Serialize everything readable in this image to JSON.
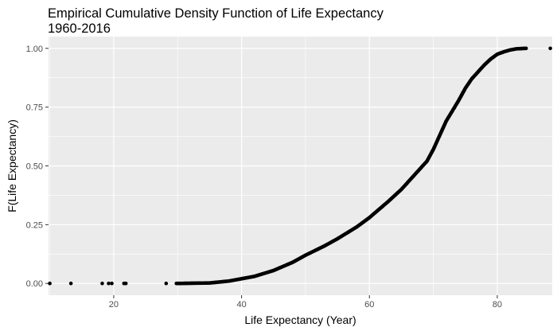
{
  "chart_data": {
    "type": "scatter",
    "title_lines": [
      "Empirical Cumulative Density Function of Life Expectancy",
      "1960-2016"
    ],
    "xlabel": "Life Expectancy (Year)",
    "ylabel": "F(Life Expectancy)",
    "xlim": [
      9.8,
      88.6
    ],
    "ylim": [
      -0.05,
      1.05
    ],
    "x_ticks": [
      20,
      40,
      60,
      80
    ],
    "x_minor_ticks": [
      10,
      30,
      50,
      70
    ],
    "y_ticks": [
      0,
      0.25,
      0.5,
      0.75,
      1.0
    ],
    "y_tick_labels": [
      "0.00",
      "0.25",
      "0.50",
      "0.75",
      "1.00"
    ],
    "colors": {
      "panel": "#ebebeb",
      "grid": "#ffffff",
      "point": "#000000"
    },
    "isolated_points": [
      {
        "x": 10.0,
        "y": 0.0
      },
      {
        "x": 13.3,
        "y": 0.0
      },
      {
        "x": 18.2,
        "y": 0.0
      },
      {
        "x": 19.2,
        "y": 0.0
      },
      {
        "x": 19.7,
        "y": 0.0
      },
      {
        "x": 21.6,
        "y": 0.0
      },
      {
        "x": 21.9,
        "y": 0.0
      },
      {
        "x": 28.2,
        "y": 0.0
      },
      {
        "x": 29.8,
        "y": 0.0
      },
      {
        "x": 84.5,
        "y": 1.0
      },
      {
        "x": 88.3,
        "y": 1.0
      }
    ],
    "curve": [
      {
        "x": 30.0,
        "y": 0.0
      },
      {
        "x": 35.0,
        "y": 0.002
      },
      {
        "x": 38.0,
        "y": 0.01
      },
      {
        "x": 40.0,
        "y": 0.02
      },
      {
        "x": 42.0,
        "y": 0.03
      },
      {
        "x": 45.0,
        "y": 0.055
      },
      {
        "x": 48.0,
        "y": 0.09
      },
      {
        "x": 50.0,
        "y": 0.12
      },
      {
        "x": 53.0,
        "y": 0.16
      },
      {
        "x": 55.0,
        "y": 0.19
      },
      {
        "x": 58.0,
        "y": 0.24
      },
      {
        "x": 60.0,
        "y": 0.28
      },
      {
        "x": 63.0,
        "y": 0.35
      },
      {
        "x": 65.0,
        "y": 0.4
      },
      {
        "x": 67.0,
        "y": 0.46
      },
      {
        "x": 69.0,
        "y": 0.52
      },
      {
        "x": 70.0,
        "y": 0.57
      },
      {
        "x": 71.0,
        "y": 0.63
      },
      {
        "x": 72.0,
        "y": 0.69
      },
      {
        "x": 74.0,
        "y": 0.78
      },
      {
        "x": 75.0,
        "y": 0.83
      },
      {
        "x": 76.0,
        "y": 0.87
      },
      {
        "x": 77.0,
        "y": 0.9
      },
      {
        "x": 78.0,
        "y": 0.93
      },
      {
        "x": 79.0,
        "y": 0.955
      },
      {
        "x": 80.0,
        "y": 0.975
      },
      {
        "x": 81.0,
        "y": 0.985
      },
      {
        "x": 82.0,
        "y": 0.993
      },
      {
        "x": 83.0,
        "y": 0.998
      },
      {
        "x": 84.5,
        "y": 1.0
      }
    ]
  }
}
